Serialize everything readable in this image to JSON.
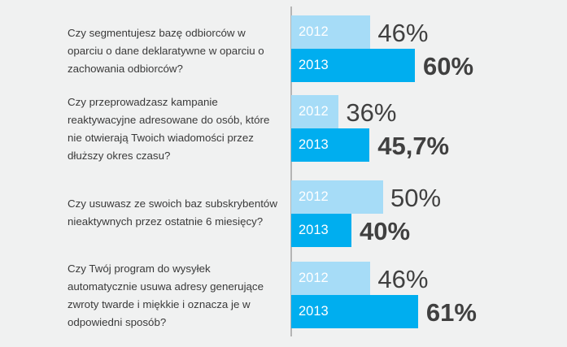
{
  "colors": {
    "background": "#f0f1f1",
    "series_2012": "#a6dcf7",
    "series_2013": "#00aeef",
    "value_text": "#404040"
  },
  "chart_data": {
    "type": "bar",
    "orientation": "horizontal",
    "categories": [
      "Czy segmentujesz bazę odbiorców w oparciu o dane deklaratywne w oparciu o zachowania odbiorców?",
      "Czy przeprowadzasz kampanie reaktywacyjne adresowane do osób, które nie otwierają Twoich wiadomości przez dłuższy okres czasu?",
      "Czy usuwasz ze swoich baz subskrybentów nieaktywnych przez ostatnie 6 miesięcy?",
      "Czy Twój program do wysyłek automatycznie usuwa adresy generujące zwroty twarde i miękkie i oznacza je w odpowiedni sposób?"
    ],
    "series": [
      {
        "name": "2012",
        "values": [
          46,
          36,
          50,
          46
        ],
        "labels": [
          "46%",
          "36%",
          "50%",
          "46%"
        ]
      },
      {
        "name": "2013",
        "values": [
          60,
          45.7,
          40,
          61
        ],
        "labels": [
          "60%",
          "45,7%",
          "40%",
          "61%"
        ]
      }
    ],
    "unit": "%",
    "grid": false,
    "legend": "none (year labels inside bars)"
  }
}
